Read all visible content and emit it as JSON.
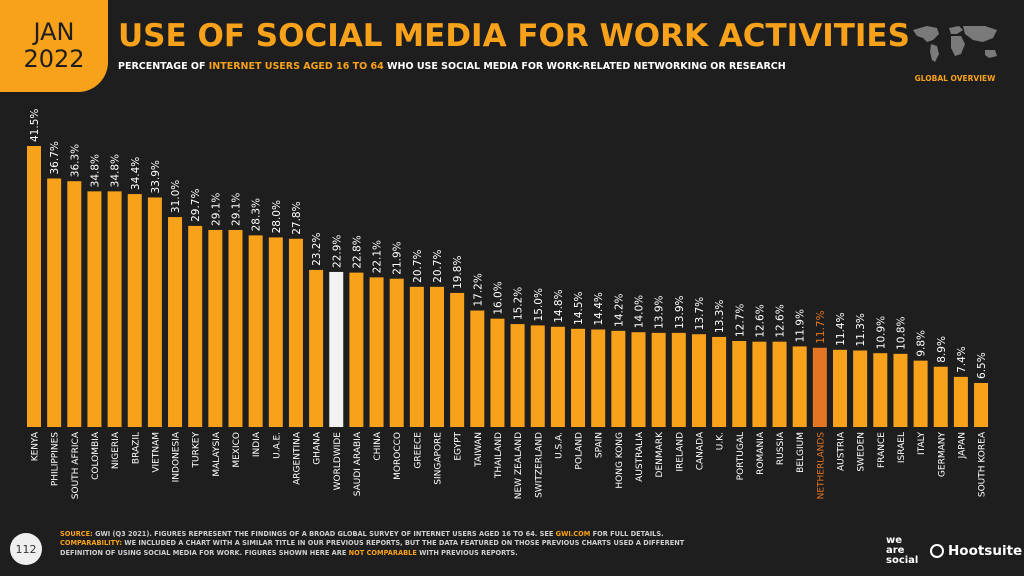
{
  "header": {
    "month": "JAN",
    "year": "2022",
    "title": "USE OF SOCIAL MEDIA FOR WORK ACTIVITIES",
    "subtitle_pre": "PERCENTAGE OF ",
    "subtitle_highlight": "INTERNET USERS AGED 16 TO 64",
    "subtitle_post": " WHO USE SOCIAL MEDIA FOR WORK-RELATED NETWORKING OR RESEARCH",
    "region_label": "GLOBAL OVERVIEW"
  },
  "colors": {
    "accent": "#f8a21b",
    "worldwide_bar": "#f2f2f2",
    "highlight_bar": "#e37622",
    "background": "#1e1e1e"
  },
  "chart_data": {
    "type": "bar",
    "ylim": [
      0,
      41.5
    ],
    "value_suffix": "%",
    "categories": [
      "KENYA",
      "PHILIPPINES",
      "SOUTH AFRICA",
      "COLOMBIA",
      "NIGERIA",
      "BRAZIL",
      "VIETNAM",
      "INDONESIA",
      "TURKEY",
      "MALAYSIA",
      "MEXICO",
      "INDIA",
      "U.A.E.",
      "ARGENTINA",
      "GHANA",
      "WORLDWIDE",
      "SAUDI ARABIA",
      "CHINA",
      "MOROCCO",
      "GREECE",
      "SINGAPORE",
      "EGYPT",
      "TAIWAN",
      "THAILAND",
      "NEW ZEALAND",
      "SWITZERLAND",
      "U.S.A.",
      "POLAND",
      "SPAIN",
      "HONG KONG",
      "AUSTRALIA",
      "DENMARK",
      "IRELAND",
      "CANADA",
      "U.K.",
      "PORTUGAL",
      "ROMANIA",
      "RUSSIA",
      "BELGIUM",
      "NETHERLANDS",
      "AUSTRIA",
      "SWEDEN",
      "FRANCE",
      "ISRAEL",
      "ITALY",
      "GERMANY",
      "JAPAN",
      "SOUTH KOREA"
    ],
    "values": [
      41.5,
      36.7,
      36.3,
      34.8,
      34.8,
      34.4,
      33.9,
      31.0,
      29.7,
      29.1,
      29.1,
      28.3,
      28.0,
      27.8,
      23.2,
      22.9,
      22.8,
      22.1,
      21.9,
      20.7,
      20.7,
      19.8,
      17.2,
      16.0,
      15.2,
      15.0,
      14.8,
      14.5,
      14.4,
      14.2,
      14.0,
      13.9,
      13.9,
      13.7,
      13.3,
      12.7,
      12.6,
      12.6,
      11.9,
      11.7,
      11.4,
      11.3,
      10.9,
      10.8,
      9.8,
      8.9,
      7.4,
      6.5
    ],
    "labels": [
      "41.5%",
      "36.7%",
      "36.3%",
      "34.8%",
      "34.8%",
      "34.4%",
      "33.9%",
      "31.0%",
      "29.7%",
      "29.1%",
      "29.1%",
      "28.3%",
      "28.0%",
      "27.8%",
      "23.2%",
      "22.9%",
      "22.8%",
      "22.1%",
      "21.9%",
      "20.7%",
      "20.7%",
      "19.8%",
      "17.2%",
      "16.0%",
      "15.2%",
      "15.0%",
      "14.8%",
      "14.5%",
      "14.4%",
      "14.2%",
      "14.0%",
      "13.9%",
      "13.9%",
      "13.7%",
      "13.3%",
      "12.7%",
      "12.6%",
      "12.6%",
      "11.9%",
      "11.7%",
      "11.4%",
      "11.3%",
      "10.9%",
      "10.8%",
      "9.8%",
      "8.9%",
      "7.4%",
      "6.5%"
    ],
    "worldwide_category": "WORLDWIDE",
    "highlight_category": "NETHERLANDS"
  },
  "footer": {
    "source_label": "SOURCE:",
    "source_text": " GWI (Q3 2021). FIGURES REPRESENT THE FINDINGS OF A BROAD GLOBAL SURVEY OF INTERNET USERS AGED 16 TO 64. SEE ",
    "source_link": "GWI.COM",
    "source_end": " FOR FULL DETAILS.",
    "comparability_label": "COMPARABILITY:",
    "comparability_text": " WE INCLUDED A CHART WITH A SIMILAR TITLE IN OUR PREVIOUS REPORTS, BUT THE DATA FEATURED ON THOSE PREVIOUS CHARTS USED A DIFFERENT DEFINITION OF USING SOCIAL MEDIA FOR WORK. FIGURES SHOWN HERE ARE ",
    "comparability_highlight": "NOT COMPARABLE",
    "comparability_end": " WITH PREVIOUS REPORTS.",
    "page_number": "112",
    "logo_left_1": "we",
    "logo_left_2": "are",
    "logo_left_3": "social",
    "logo_right": "Hootsuite"
  }
}
